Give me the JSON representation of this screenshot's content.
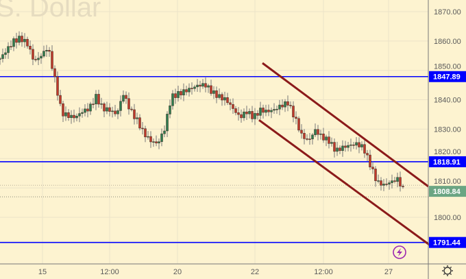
{
  "chart_data": {
    "type": "candlestick",
    "watermark": "S. Dollar",
    "ylim": [
      1788,
      1874
    ],
    "y_ticks": [
      1800,
      1810,
      1820,
      1830,
      1840,
      1850,
      1860,
      1870
    ],
    "y_tick_labels": [
      "1800.00",
      "1810.00",
      "1820.00",
      "1830.00",
      "1840.00",
      "1850.00",
      "1860.00",
      "1870.00"
    ],
    "x_ticks": [
      {
        "index": 6.2,
        "label": "15"
      },
      {
        "index": 16,
        "label": "12:00"
      },
      {
        "index": 25.9,
        "label": "20"
      },
      {
        "index": 37.2,
        "label": "22"
      },
      {
        "index": 47.2,
        "label": "12:00"
      },
      {
        "index": 56.7,
        "label": "27"
      }
    ],
    "closes": [
      1854,
      1857,
      1860,
      1861,
      1859,
      1853,
      1855,
      1858,
      1847,
      1835.5,
      1834.5,
      1834,
      1836,
      1837,
      1841,
      1837,
      1836.5,
      1835,
      1842,
      1836.5,
      1833,
      1828.5,
      1826,
      1825,
      1830,
      1841,
      1842,
      1843,
      1844,
      1845,
      1845,
      1842.5,
      1841,
      1840,
      1837,
      1834,
      1836,
      1834,
      1836.5,
      1836,
      1836.6,
      1838,
      1839,
      1834,
      1828,
      1826,
      1829.6,
      1827.3,
      1826,
      1822.6,
      1823.8,
      1824.5,
      1825,
      1823.8,
      1818,
      1812,
      1811,
      1812,
      1813,
      1808.84
    ],
    "horizontal_levels": [
      {
        "value": 1847.89,
        "label": "1847.89",
        "color": "#0000ff"
      },
      {
        "value": 1818.91,
        "label": "1818.91",
        "color": "#0000ff"
      },
      {
        "value": 1791.44,
        "label": "1791.44",
        "color": "#0000ff"
      }
    ],
    "current_price": {
      "value": 1808.84,
      "label": "1808.84",
      "color": "#6ba583"
    },
    "channel_lines": [
      {
        "from": [
          38.3,
          1852.5
        ],
        "to": [
          62.5,
          1810.5
        ],
        "color": "#8b1a1a"
      },
      {
        "from": [
          37.8,
          1833.1
        ],
        "to": [
          62.8,
          1790.4
        ],
        "color": "#8b1a1a"
      }
    ],
    "up_color": "#2e7d4f",
    "down_color": "#c0392b"
  },
  "icons": {
    "lightning": "lightning-icon",
    "settings": "gear-icon"
  }
}
